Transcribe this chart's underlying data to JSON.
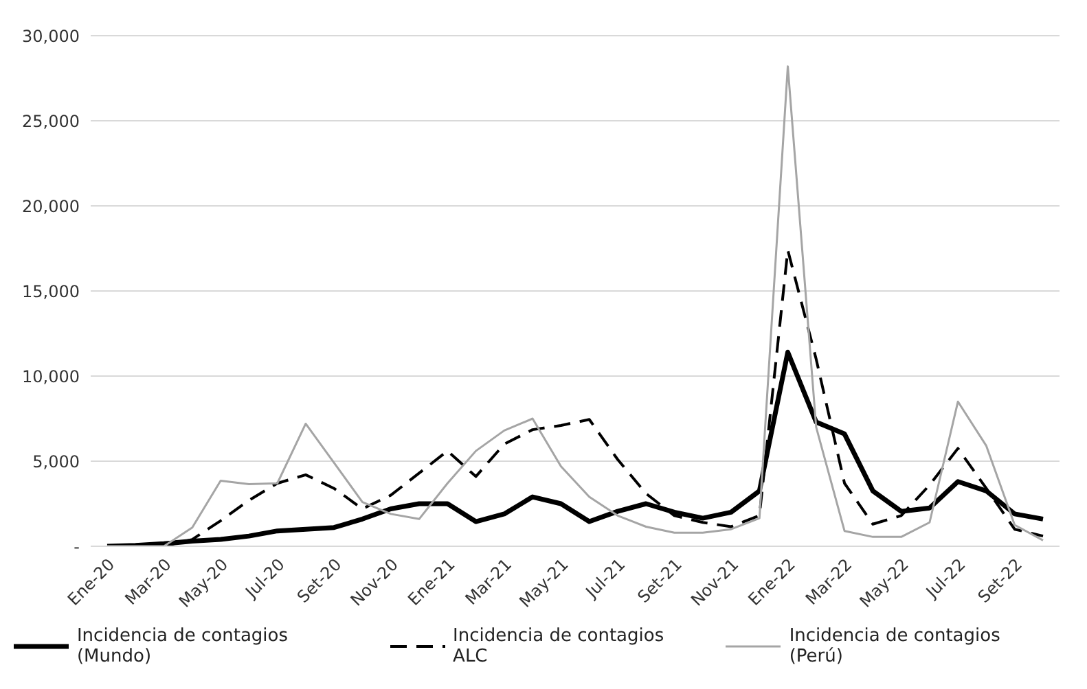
{
  "chart_data": {
    "type": "line",
    "categories": [
      "Ene-20",
      null,
      "Mar-20",
      null,
      "May-20",
      null,
      "Jul-20",
      null,
      "Set-20",
      null,
      "Nov-20",
      null,
      "Ene-21",
      null,
      "Mar-21",
      null,
      "May-21",
      null,
      "Jul-21",
      null,
      "Set-21",
      null,
      "Nov-21",
      null,
      "Ene-22",
      null,
      "Mar-22",
      null,
      "May-22",
      null,
      "Jul-22",
      null,
      "Set-22",
      null
    ],
    "series": [
      {
        "name": "Incidencia de contagios (Mundo)",
        "color": "#000000",
        "line_style": "solid",
        "values": [
          0,
          50,
          150,
          300,
          400,
          600,
          900,
          1000,
          1100,
          1600,
          2200,
          2500,
          2500,
          1450,
          1900,
          2900,
          2500,
          1450,
          2050,
          2500,
          2000,
          1650,
          2000,
          3250,
          11400,
          7300,
          6600,
          3250,
          2050,
          2250,
          3800,
          3250,
          1900,
          1600
        ]
      },
      {
        "name": "Incidencia de contagios ALC",
        "color": "#000000",
        "line_style": "dashed",
        "values": [
          0,
          0,
          0,
          400,
          1500,
          2700,
          3700,
          4200,
          3400,
          2200,
          3000,
          4300,
          5600,
          4100,
          6000,
          6850,
          7100,
          7450,
          5100,
          3100,
          1800,
          1400,
          1150,
          1800,
          17400,
          11000,
          3700,
          1300,
          1800,
          3600,
          5750,
          3400,
          1000,
          600
        ]
      },
      {
        "name": "Incidencia de contagios (Perú)",
        "color": "#a5a5a5",
        "line_style": "solid",
        "values": [
          0,
          0,
          0,
          1100,
          3850,
          3650,
          3700,
          7200,
          4900,
          2600,
          1900,
          1600,
          3700,
          5600,
          6800,
          7500,
          4700,
          2900,
          1800,
          1150,
          800,
          800,
          1000,
          1650,
          28200,
          7000,
          900,
          550,
          550,
          1400,
          8500,
          5900,
          1250,
          350
        ]
      }
    ],
    "ylim": [
      0,
      30000
    ],
    "yticks": [
      {
        "value": 0,
        "label": "-"
      },
      {
        "value": 5000,
        "label": "5,000"
      },
      {
        "value": 10000,
        "label": "10,000"
      },
      {
        "value": 15000,
        "label": "15,000"
      },
      {
        "value": 20000,
        "label": "20,000"
      },
      {
        "value": 25000,
        "label": "25,000"
      },
      {
        "value": 30000,
        "label": "30,000"
      }
    ],
    "grid": "y",
    "legend": "bottom",
    "marker": "none"
  }
}
